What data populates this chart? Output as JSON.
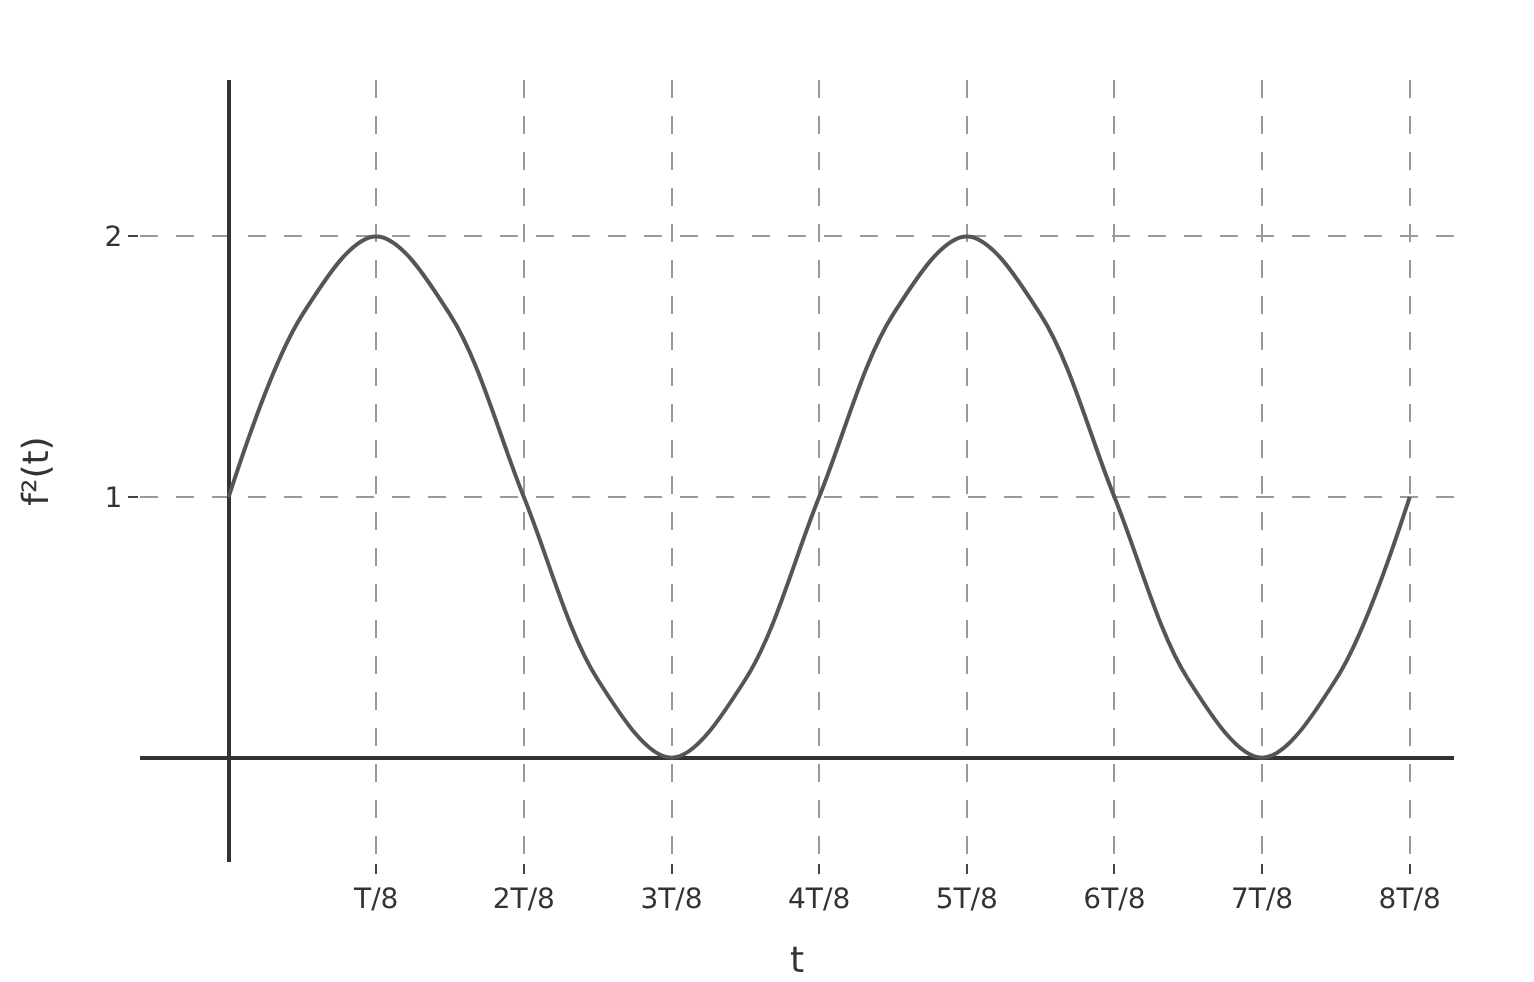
{
  "chart_data": {
    "type": "line",
    "xlabel": "t",
    "ylabel": "f²(t)",
    "categories": [
      null,
      null,
      "T/8",
      null,
      "2T/8",
      null,
      "3T/8",
      null,
      "4T/8",
      null,
      "5T/8",
      null,
      "6T/8",
      null,
      "7T/8",
      null,
      "8T/8"
    ],
    "series": [
      {
        "color": "#555555",
        "values": [
          1,
          1.7,
          2,
          1.7,
          1,
          0.3,
          0,
          0.3,
          1,
          1.7,
          2,
          1.7,
          1,
          0.3,
          0,
          0.3,
          1
        ]
      }
    ],
    "ylim": [
      -0.4,
      2.6
    ],
    "yticks": [
      1,
      2
    ],
    "grid": true,
    "marker": "none",
    "line_style": "solid"
  }
}
